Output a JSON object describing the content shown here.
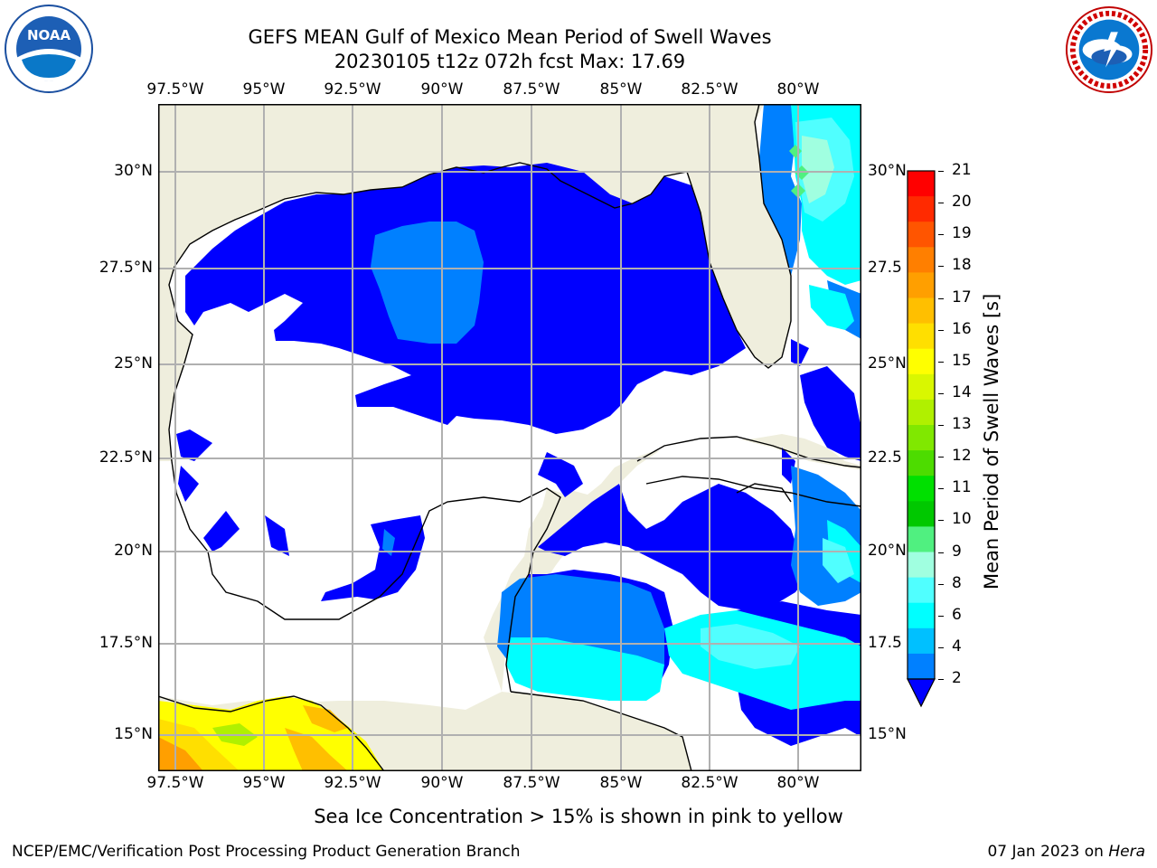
{
  "title": {
    "line1": "GEFS MEAN Gulf of Mexico Mean Period of Swell Waves",
    "line2": "20230105 t12z 072h fcst   Max: 17.69"
  },
  "logos": {
    "left": {
      "icon": "noaa-logo-icon",
      "text": "NOAA"
    },
    "right": {
      "icon": "national-weather-service-logo-icon"
    }
  },
  "axes": {
    "lon_ticks": [
      "97.5°W",
      "95°W",
      "92.5°W",
      "90°W",
      "87.5°W",
      "85°W",
      "82.5°W",
      "80°W"
    ],
    "lat_ticks_left": [
      "30°N",
      "27.5°N",
      "25°N",
      "22.5°N",
      "20°N",
      "17.5°N",
      "15°N"
    ],
    "lat_ticks_right": [
      "30°N",
      "27.5",
      "25°N",
      "22.5",
      "20°N",
      "17.5",
      "15°N"
    ]
  },
  "colorbar": {
    "label": "Mean Period of Swell Waves [s]",
    "ticks": [
      "21",
      "20",
      "19",
      "18",
      "17",
      "16",
      "15",
      "14",
      "13",
      "12",
      "11",
      "10",
      "9",
      "8",
      "6",
      "4",
      "2"
    ],
    "colors": [
      "#ff0000",
      "#ff2a00",
      "#ff5500",
      "#ff7f00",
      "#ff9f00",
      "#ffbf00",
      "#ffdf00",
      "#ffff00",
      "#d9f700",
      "#b0f000",
      "#80e800",
      "#4ddc00",
      "#00e000",
      "#00c800",
      "#50f080",
      "#a0ffe0",
      "#50ffff",
      "#00ffff",
      "#00c0ff",
      "#0080ff"
    ]
  },
  "caption": "Sea Ice Concentration > 15% is shown in pink to yellow",
  "footer": {
    "left": "NCEP/EMC/Verification Post Processing Product Generation Branch",
    "right_date": "07 Jan 2023 on ",
    "right_host": "Hera"
  },
  "colors": {
    "land": "#efeedd",
    "swell_2_4": "#0000ff",
    "swell_4_6": "#0080ff",
    "swell_6_8": "#00ffff",
    "swell_8_9": "#50ffff",
    "swell_9_10": "#a0ffe0",
    "swell_10_11": "#50f080",
    "grid": "#b0b0b0"
  }
}
